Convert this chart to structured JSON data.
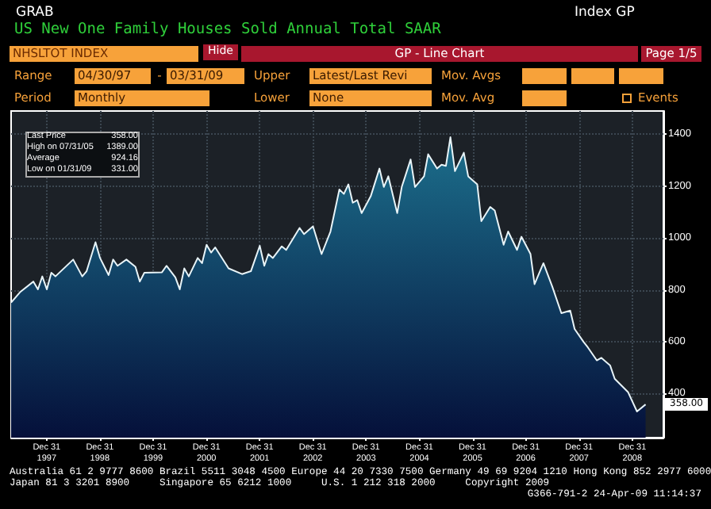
{
  "chart_data": {
    "type": "area",
    "title": "US New One Family Houses Sold Annual Total SAAR",
    "x": [
      "1997-05",
      "1997-07",
      "1997-10",
      "1997-11",
      "1997-12",
      "1998-01",
      "1998-02",
      "1998-03",
      "1998-07",
      "1998-09",
      "1998-10",
      "1998-12",
      "1999-01",
      "1999-03",
      "1999-04",
      "1999-05",
      "1999-07",
      "1999-09",
      "1999-10",
      "1999-11",
      "2000-03",
      "2000-04",
      "2000-06",
      "2000-07",
      "2000-08",
      "2000-09",
      "2000-11",
      "2000-12",
      "2001-01",
      "2001-02",
      "2001-03",
      "2001-06",
      "2001-09",
      "2001-11",
      "2002-01",
      "2002-02",
      "2002-03",
      "2002-04",
      "2002-06",
      "2002-07",
      "2002-10",
      "2002-11",
      "2003-01",
      "2003-03",
      "2003-05",
      "2003-07",
      "2003-08",
      "2003-09",
      "2003-10",
      "2003-11",
      "2003-12",
      "2004-02",
      "2004-04",
      "2004-05",
      "2004-06",
      "2004-08",
      "2004-09",
      "2004-11",
      "2004-12",
      "2005-02",
      "2005-03",
      "2005-05",
      "2005-06",
      "2005-07",
      "2005-08",
      "2005-09",
      "2005-11",
      "2005-12",
      "2006-02",
      "2006-03",
      "2006-05",
      "2006-06",
      "2006-08",
      "2006-09",
      "2006-11",
      "2006-12",
      "2007-02",
      "2007-03",
      "2007-05",
      "2007-07",
      "2007-09",
      "2007-11",
      "2007-12",
      "2008-02",
      "2008-03",
      "2008-05",
      "2008-06",
      "2008-08",
      "2008-09",
      "2008-12",
      "2009-02",
      "2009-04"
    ],
    "series": [
      {
        "color": "#1c6f8c",
        "values": [
          751,
          791,
          832,
          802,
          852,
          802,
          866,
          852,
          917,
          852,
          872,
          984,
          923,
          857,
          917,
          893,
          917,
          889,
          832,
          866,
          868,
          893,
          848,
          802,
          883,
          852,
          923,
          903,
          974,
          944,
          964,
          883,
          861,
          872,
          970,
          893,
          938,
          923,
          968,
          954,
          1039,
          1015,
          1045,
          938,
          1025,
          1187,
          1170,
          1207,
          1136,
          1146,
          1096,
          1161,
          1268,
          1197,
          1238,
          1096,
          1197,
          1303,
          1197,
          1238,
          1323,
          1268,
          1283,
          1278,
          1389,
          1258,
          1329,
          1238,
          1207,
          1065,
          1120,
          1106,
          974,
          1025,
          954,
          1005,
          939,
          822,
          903,
          812,
          710,
          720,
          649,
          599,
          578,
          528,
          538,
          508,
          457,
          406,
          331,
          358
        ]
      }
    ],
    "xlim": [
      "1997-05",
      "2009-08"
    ],
    "xticks": [
      {
        "value": "1997-12-31",
        "label": "Dec 31\n1997"
      },
      {
        "value": "1998-12-31",
        "label": "Dec 31\n1998"
      },
      {
        "value": "1999-12-31",
        "label": "Dec 31\n1999"
      },
      {
        "value": "2000-12-31",
        "label": "Dec 31\n2000"
      },
      {
        "value": "2001-12-31",
        "label": "Dec 31\n2001"
      },
      {
        "value": "2002-12-31",
        "label": "Dec 31\n2002"
      },
      {
        "value": "2003-12-31",
        "label": "Dec 31\n2003"
      },
      {
        "value": "2004-12-31",
        "label": "Dec 31\n2004"
      },
      {
        "value": "2005-12-31",
        "label": "Dec 31\n2005"
      },
      {
        "value": "2006-12-31",
        "label": "Dec 31\n2006"
      },
      {
        "value": "2007-12-31",
        "label": "Dec 31\n2007"
      },
      {
        "value": "2008-12-31",
        "label": "Dec 31\n2008"
      }
    ],
    "ylim": [
      230,
      1490
    ],
    "yticks": [
      400,
      600,
      800,
      1000,
      1200,
      1400
    ],
    "grid": true,
    "annotations": [
      "GRAB",
      "Index GP",
      "NHSLTOT INDEX",
      "Hide",
      "GP - Line Chart",
      "Page 1/5",
      "Range",
      "04/30/97",
      "-",
      "03/31/09",
      "Upper",
      "Latest/Last Revi",
      "Mov. Avgs",
      "Period",
      "Monthly",
      "Lower",
      "None",
      "Mov. Avg",
      "Events",
      "Last Price",
      "358.00",
      "High on 07/31/05",
      "1389.00",
      "Average",
      "924.16",
      "Low on 01/31/09",
      "331.00",
      "Australia 61 2 9777 8600 Brazil 5511 3048 4500 Europe 44 20 7330 7500 Germany 49 69 9204 1210 Hong Kong 852 2977 6000",
      "Japan 81 3 3201 8900     Singapore 65 6212 1000     U.S. 1 212 318 2000     Copyright 2009",
      "G366-791-2 24-Apr-09 11:14:37",
      {
        "text": "358.00",
        "x": "2009-04",
        "y": 358
      }
    ]
  }
}
